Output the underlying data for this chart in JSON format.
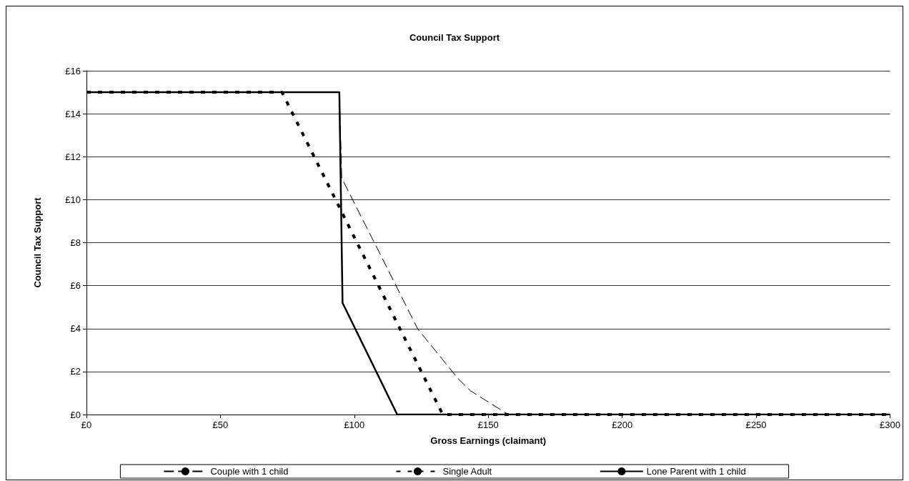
{
  "chart_data": {
    "type": "line",
    "title": "Council Tax Support",
    "xlabel": "Gross Earnings (claimant)",
    "ylabel": "Council Tax Support",
    "series": [
      {
        "name": "Couple with 1 child",
        "color": "#000000",
        "line_style": "dashed",
        "x": [
          0,
          94.4,
          95.3,
          110.3,
          123.6,
          138.5,
          143.4,
          157.5,
          300
        ],
        "values": [
          15,
          15,
          11,
          7.3,
          4,
          1.7,
          1.1,
          0,
          0
        ]
      },
      {
        "name": "Single Adult",
        "color": "#000000",
        "line_style": "dotted",
        "x": [
          0,
          73,
          133,
          300
        ],
        "values": [
          15,
          15,
          0,
          0
        ]
      },
      {
        "name": "Lone Parent with 1 child",
        "color": "#000000",
        "line_style": "solid",
        "x": [
          0,
          94.4,
          95.6,
          116,
          300
        ],
        "values": [
          15,
          15,
          5.2,
          0,
          0
        ]
      }
    ],
    "xlim": [
      0,
      300
    ],
    "xticks": [
      {
        "value": 0,
        "label": "£0"
      },
      {
        "value": 50,
        "label": "£50"
      },
      {
        "value": 100,
        "label": "£100"
      },
      {
        "value": 150,
        "label": "£150"
      },
      {
        "value": 200,
        "label": "£200"
      },
      {
        "value": 250,
        "label": "£250"
      },
      {
        "value": 300,
        "label": "£300"
      }
    ],
    "ylim": [
      0,
      16
    ],
    "yticks": [
      {
        "value": 0,
        "label": "£0"
      },
      {
        "value": 2,
        "label": "£2"
      },
      {
        "value": 4,
        "label": "£4"
      },
      {
        "value": 6,
        "label": "£6"
      },
      {
        "value": 8,
        "label": "£8"
      },
      {
        "value": 10,
        "label": "£10"
      },
      {
        "value": 12,
        "label": "£12"
      },
      {
        "value": 14,
        "label": "£14"
      },
      {
        "value": 16,
        "label": "£16"
      }
    ],
    "grid": "y",
    "legend": "bottom",
    "marker": "none"
  }
}
